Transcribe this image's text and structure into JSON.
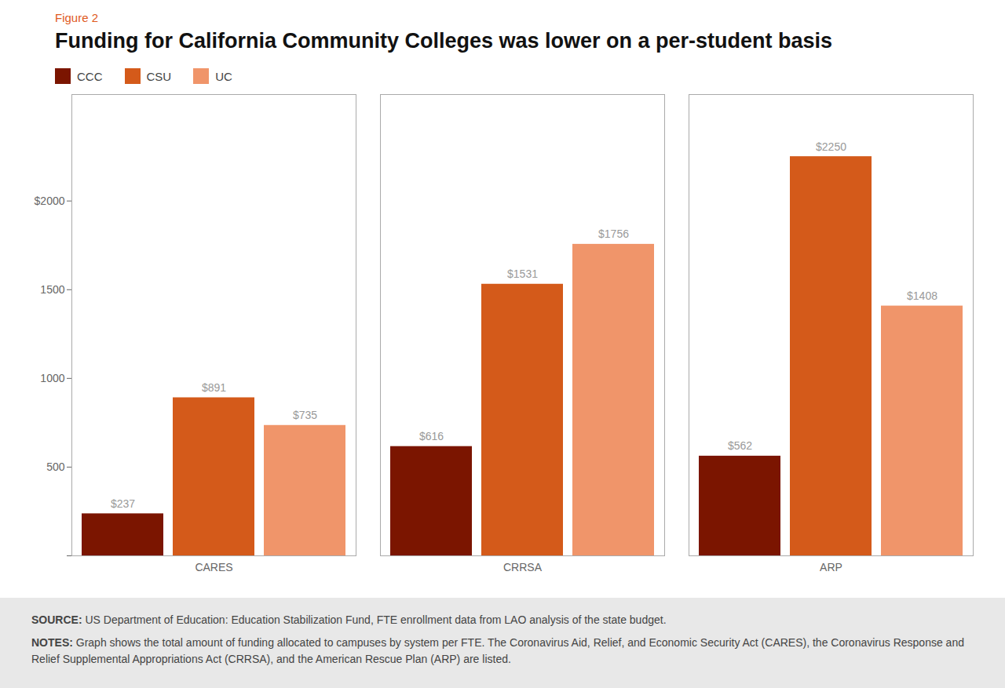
{
  "chart_data": {
    "type": "bar",
    "subtitle": "Figure 2",
    "title": "Funding for California Community Colleges was lower on a per-student basis",
    "categories": [
      "CARES",
      "CRRSA",
      "ARP"
    ],
    "series": [
      {
        "name": "CCC",
        "color": "#7B1500",
        "values": [
          237,
          616,
          562
        ],
        "value_labels": [
          "$237",
          "$616",
          "$562"
        ]
      },
      {
        "name": "CSU",
        "color": "#D45A1A",
        "values": [
          891,
          1531,
          2250
        ],
        "value_labels": [
          "$891",
          "$1531",
          "$2250"
        ]
      },
      {
        "name": "UC",
        "color": "#F0956A",
        "values": [
          735,
          1756,
          1408
        ],
        "value_labels": [
          "$735",
          "$1756",
          "$1408"
        ]
      }
    ],
    "ylim": [
      0,
      2600
    ],
    "yticks": [
      {
        "value": 0,
        "label": null
      },
      500,
      1000,
      1500,
      {
        "value": 2000,
        "label": "$2000"
      }
    ],
    "grid": false,
    "legend": "top-left",
    "data_labels": true,
    "annotations": [
      "SOURCE: US Department of Education: Education Stabilization Fund, FTE enrollment data from LAO analysis of the state budget.",
      "NOTES: Graph shows the total amount of funding allocated to campuses by system per FTE. The Coronavirus Aid, Relief, and Economic Security Act (CARES), the Coronavirus Response and Relief Supplemental Appropriations Act (CRRSA), and the American Rescue Plan (ARP) are listed."
    ]
  }
}
